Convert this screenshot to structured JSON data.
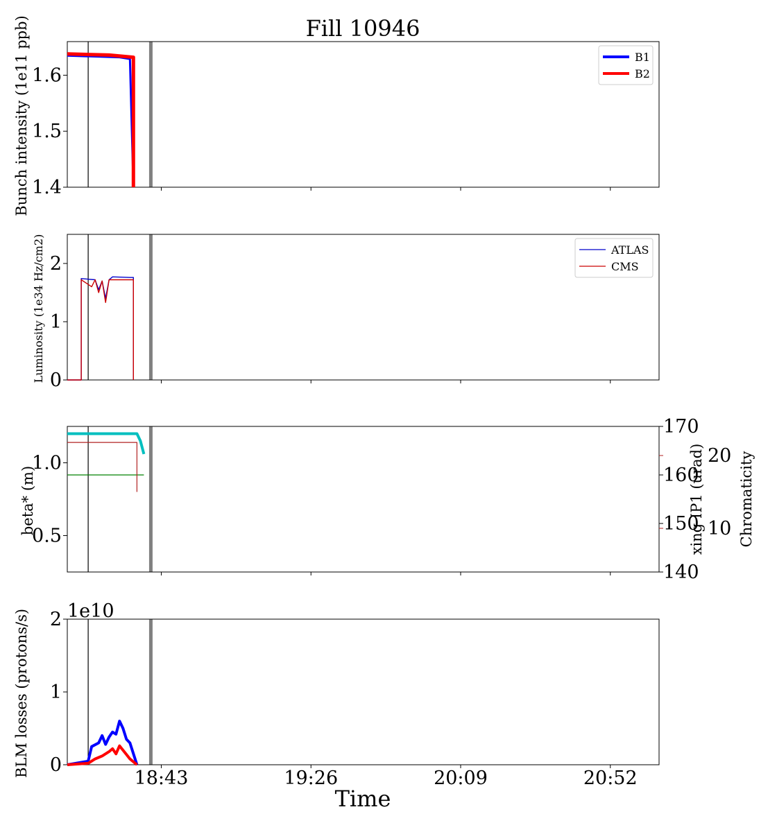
{
  "figure": {
    "title": "Fill 10946",
    "xlabel": "Time"
  },
  "colors": {
    "b1": "#0000ff",
    "b2": "#ff0000",
    "atlas": "#0000cc",
    "cms": "#cc0000",
    "beta": "#00bfbf",
    "xing": "#008000",
    "chroma": "#b22222",
    "marker": "#808080"
  },
  "chart_data": [
    {
      "type": "line",
      "ylabel": "Bunch intensity (1e11 ppb)",
      "ylim": [
        1.4,
        1.66
      ],
      "yticks": [
        "1.4",
        "1.5",
        "1.6"
      ],
      "legend": {
        "position": "top-right",
        "entries": [
          "B1",
          "B2"
        ]
      },
      "series": [
        {
          "name": "B1",
          "x": [
            "18:16",
            "18:31",
            "18:34",
            "18:35"
          ],
          "values": [
            1.635,
            1.632,
            1.629,
            1.4
          ]
        },
        {
          "name": "B2",
          "x": [
            "18:16",
            "18:28",
            "18:35",
            "18:35"
          ],
          "values": [
            1.638,
            1.636,
            1.632,
            1.4
          ]
        }
      ]
    },
    {
      "type": "line",
      "ylabel": "Luminosity (1e34 Hz/cm2)",
      "ylim": [
        0,
        2.5
      ],
      "yticks": [
        "0",
        "1",
        "2"
      ],
      "legend": {
        "position": "top-right",
        "entries": [
          "ATLAS",
          "CMS"
        ]
      },
      "series": [
        {
          "name": "ATLAS",
          "x": [
            "18:16",
            "18:20",
            "18:20",
            "18:24",
            "18:25",
            "18:26",
            "18:27",
            "18:28",
            "18:29",
            "18:34",
            "18:35",
            "18:35"
          ],
          "values": [
            0,
            0,
            1.74,
            1.72,
            1.55,
            1.7,
            1.4,
            1.72,
            1.77,
            1.76,
            1.76,
            0
          ]
        },
        {
          "name": "CMS",
          "x": [
            "18:16",
            "18:20",
            "18:20",
            "18:23",
            "18:24",
            "18:25",
            "18:26",
            "18:27",
            "18:28",
            "18:35",
            "18:35"
          ],
          "values": [
            0,
            0,
            1.72,
            1.6,
            1.72,
            1.5,
            1.7,
            1.33,
            1.72,
            1.72,
            0
          ]
        }
      ]
    },
    {
      "type": "line",
      "ylabel": "beta* (m)",
      "ylabel_right": "xing IP1 (urad)",
      "ylabel_right2": "Chromaticity",
      "ylim": [
        0.25,
        1.25
      ],
      "yticks": [
        "0.5",
        "1.0"
      ],
      "ylim_right": [
        140,
        170
      ],
      "yticks_right": [
        "140",
        "150",
        "160",
        "170"
      ],
      "ylim_right2": [
        4,
        24
      ],
      "yticks_right2": [
        "10",
        "20"
      ],
      "series": [
        {
          "name": "beta*",
          "axis": "left",
          "x": [
            "18:16",
            "18:36",
            "18:37",
            "18:38"
          ],
          "values": [
            1.2,
            1.2,
            1.15,
            1.06
          ]
        },
        {
          "name": "xing IP1",
          "axis": "right",
          "x": [
            "18:16",
            "18:38"
          ],
          "values": [
            160,
            160
          ]
        },
        {
          "name": "Chromaticity",
          "axis": "right2",
          "x": [
            "18:16",
            "18:36",
            "18:36"
          ],
          "values": [
            21.8,
            21.8,
            15.0
          ]
        }
      ]
    },
    {
      "type": "line",
      "ylabel": "BLM losses (protons/s)",
      "offset_text": "1e10",
      "ylim": [
        0,
        2
      ],
      "yticks": [
        "0",
        "1",
        "2"
      ],
      "xticks": [
        "18:43",
        "19:26",
        "20:09",
        "20:52"
      ],
      "series": [
        {
          "name": "B1",
          "x": [
            "18:16",
            "18:22",
            "18:23",
            "18:25",
            "18:26",
            "18:27",
            "18:28",
            "18:29",
            "18:30",
            "18:31",
            "18:32",
            "18:33",
            "18:34",
            "18:36"
          ],
          "values": [
            0,
            0.05,
            0.25,
            0.3,
            0.4,
            0.28,
            0.38,
            0.45,
            0.42,
            0.6,
            0.5,
            0.35,
            0.3,
            0
          ]
        },
        {
          "name": "B2",
          "x": [
            "18:16",
            "18:22",
            "18:24",
            "18:26",
            "18:28",
            "18:29",
            "18:30",
            "18:31",
            "18:32",
            "18:33",
            "18:34",
            "18:36"
          ],
          "values": [
            0,
            0.02,
            0.08,
            0.12,
            0.18,
            0.22,
            0.15,
            0.26,
            0.2,
            0.14,
            0.08,
            0
          ]
        }
      ]
    }
  ],
  "x_axis": {
    "range": [
      "18:16",
      "21:06"
    ],
    "tick_times": [
      "18:43",
      "19:26",
      "20:09",
      "20:52"
    ],
    "markers": [
      {
        "name": "black-marker",
        "time": "18:22"
      },
      {
        "name": "gray-marker",
        "time": "18:40"
      }
    ]
  }
}
